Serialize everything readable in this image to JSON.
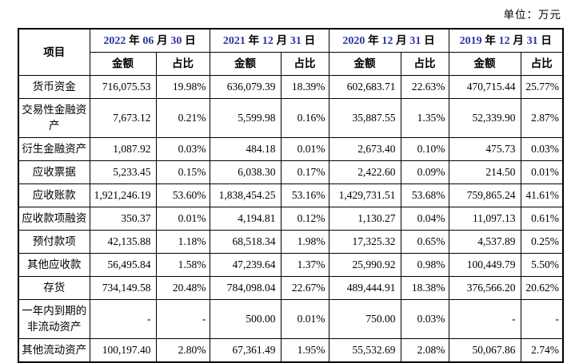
{
  "unit_label": "单位：万元",
  "colors": {
    "date_digit_blue": "#2c35a0",
    "border": "#000000",
    "background": "#ffffff"
  },
  "table": {
    "item_header": "项目",
    "amount_header": "金额",
    "ratio_header": "占比",
    "periods": [
      "2022 年 06 月 30 日",
      "2021 年 12 月 31 日",
      "2020 年 12 月 31 日",
      "2019 年 12 月 31 日"
    ],
    "rows": [
      {
        "item": "货币资金",
        "values": [
          "716,075.53",
          "19.98%",
          "636,079.39",
          "18.39%",
          "602,683.71",
          "22.63%",
          "470,715.44",
          "25.77%"
        ]
      },
      {
        "item": "交易性金融资产",
        "values": [
          "7,673.12",
          "0.21%",
          "5,599.98",
          "0.16%",
          "35,887.55",
          "1.35%",
          "52,339.90",
          "2.87%"
        ]
      },
      {
        "item": "衍生金融资产",
        "values": [
          "1,087.92",
          "0.03%",
          "484.18",
          "0.01%",
          "2,673.40",
          "0.10%",
          "475.73",
          "0.03%"
        ]
      },
      {
        "item": "应收票据",
        "values": [
          "5,233.45",
          "0.15%",
          "6,038.30",
          "0.17%",
          "2,422.60",
          "0.09%",
          "214.50",
          "0.01%"
        ]
      },
      {
        "item": "应收账款",
        "values": [
          "1,921,246.19",
          "53.60%",
          "1,838,454.25",
          "53.16%",
          "1,429,731.51",
          "53.68%",
          "759,865.24",
          "41.61%"
        ]
      },
      {
        "item": "应收款项融资",
        "values": [
          "350.37",
          "0.01%",
          "4,194.81",
          "0.12%",
          "1,130.27",
          "0.04%",
          "11,097.13",
          "0.61%"
        ]
      },
      {
        "item": "预付款项",
        "values": [
          "42,135.88",
          "1.18%",
          "68,518.34",
          "1.98%",
          "17,325.32",
          "0.65%",
          "4,537.89",
          "0.25%"
        ]
      },
      {
        "item": "其他应收款",
        "values": [
          "56,495.84",
          "1.58%",
          "47,239.64",
          "1.37%",
          "25,990.92",
          "0.98%",
          "100,449.79",
          "5.50%"
        ]
      },
      {
        "item": "存货",
        "values": [
          "734,149.58",
          "20.48%",
          "784,098.04",
          "22.67%",
          "489,444.91",
          "18.38%",
          "376,566.20",
          "20.62%"
        ]
      },
      {
        "item": "一年内到期的非流动资产",
        "values": [
          "-",
          "-",
          "500.00",
          "0.01%",
          "750.00",
          "0.03%",
          "-",
          "-"
        ]
      },
      {
        "item": "其他流动资产",
        "values": [
          "100,197.40",
          "2.80%",
          "67,361.49",
          "1.95%",
          "55,532.69",
          "2.08%",
          "50,067.86",
          "2.74%"
        ]
      }
    ]
  }
}
